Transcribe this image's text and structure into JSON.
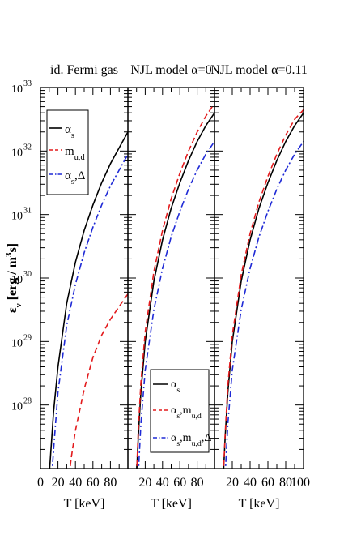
{
  "chart_data": [
    {
      "type": "line",
      "title": "id. Fermi gas",
      "xlabel": "T  [keV]",
      "ylabel": "ε_ν [erg / m³s]",
      "ylabel_main": "ε",
      "ylabel_sub": "ν",
      "ylabel_rest": " [erg / m",
      "ylabel_sup": "3",
      "ylabel_end": "s]",
      "xlim": [
        0,
        100
      ],
      "ylim_log10": [
        27,
        33
      ],
      "log_y": true,
      "xticks": [
        "0",
        "20",
        "40",
        "60",
        "80"
      ],
      "yticks": [
        {
          "base": "10",
          "exp": "28"
        },
        {
          "base": "10",
          "exp": "29"
        },
        {
          "base": "10",
          "exp": "30"
        },
        {
          "base": "10",
          "exp": "31"
        },
        {
          "base": "10",
          "exp": "32"
        },
        {
          "base": "10",
          "exp": "33"
        }
      ],
      "legend_position": "top-left",
      "series": [
        {
          "name": "α_s",
          "label_main": "α",
          "label_sub": "s",
          "label_rest": "",
          "color": "#000000",
          "dash": "solid",
          "x": [
            10,
            15,
            20,
            30,
            40,
            50,
            60,
            70,
            80,
            90,
            100
          ],
          "y_log10": [
            26.9,
            27.9,
            28.6,
            29.6,
            30.25,
            30.75,
            31.15,
            31.5,
            31.8,
            32.05,
            32.3
          ]
        },
        {
          "name": "m_u,d",
          "label_main": "m",
          "label_sub": "u,d",
          "label_rest": "",
          "color": "#e31a1c",
          "dash": "dashed",
          "x": [
            33,
            35,
            40,
            50,
            60,
            70,
            80,
            90,
            100
          ],
          "y_log10": [
            26.9,
            27.15,
            27.6,
            28.25,
            28.75,
            29.1,
            29.35,
            29.55,
            29.75
          ]
        },
        {
          "name": "α_s,Δ",
          "label_main": "α",
          "label_sub": "s",
          "label_rest": ",Δ",
          "color": "#1f2ad6",
          "dash": "dashdot",
          "x": [
            13,
            15,
            20,
            30,
            40,
            50,
            60,
            70,
            80,
            90,
            100
          ],
          "y_log10": [
            26.9,
            27.3,
            28.2,
            29.25,
            29.9,
            30.4,
            30.8,
            31.15,
            31.45,
            31.7,
            31.95
          ]
        }
      ]
    },
    {
      "type": "line",
      "title": "NJL model α=0",
      "xlabel": "T  [keV]",
      "xlim": [
        0,
        100
      ],
      "ylim_log10": [
        27,
        33
      ],
      "log_y": true,
      "xticks": [
        "20",
        "40",
        "60",
        "80"
      ],
      "legend_position": "bottom-right",
      "series": [
        {
          "name": "α_s",
          "label_main": "α",
          "label_sub": "s",
          "label_rest": "",
          "color": "#000000",
          "dash": "solid",
          "x": [
            10,
            12,
            15,
            20,
            30,
            40,
            50,
            60,
            70,
            80,
            90,
            100
          ],
          "y_log10": [
            26.9,
            27.5,
            28.2,
            29.0,
            29.95,
            30.6,
            31.1,
            31.5,
            31.85,
            32.15,
            32.4,
            32.6
          ]
        },
        {
          "name": "α_s,m_u,d",
          "label_main": "α",
          "label_sub": "s",
          "label_rest": ",m",
          "label_sub2": "u,d",
          "color": "#e31a1c",
          "dash": "dashed",
          "x": [
            10,
            12,
            15,
            20,
            30,
            40,
            50,
            60,
            70,
            80,
            90,
            100
          ],
          "y_log10": [
            26.9,
            27.6,
            28.35,
            29.15,
            30.1,
            30.75,
            31.25,
            31.65,
            32.0,
            32.3,
            32.55,
            32.75
          ]
        },
        {
          "name": "α_s,m_u,d,Δ",
          "label_main": "α",
          "label_sub": "s",
          "label_rest": ",m",
          "label_sub2": "u,d",
          "label_tail": ",Δ",
          "color": "#1f2ad6",
          "dash": "dashdot",
          "x": [
            12,
            15,
            20,
            30,
            40,
            50,
            60,
            70,
            80,
            90,
            100
          ],
          "y_log10": [
            26.9,
            27.7,
            28.55,
            29.5,
            30.15,
            30.65,
            31.05,
            31.4,
            31.7,
            31.95,
            32.15
          ]
        }
      ]
    },
    {
      "type": "line",
      "title": "NJL model α=0.11",
      "xlabel": "T  [keV]",
      "xlim": [
        0,
        100
      ],
      "ylim_log10": [
        27,
        33
      ],
      "log_y": true,
      "xticks": [
        "20",
        "40",
        "60",
        "80",
        "100"
      ],
      "series": [
        {
          "name": "α_s",
          "color": "#000000",
          "dash": "solid",
          "x": [
            10,
            12,
            15,
            20,
            30,
            40,
            50,
            60,
            70,
            80,
            90,
            100
          ],
          "y_log10": [
            26.9,
            27.5,
            28.2,
            29.0,
            29.95,
            30.6,
            31.1,
            31.5,
            31.85,
            32.15,
            32.4,
            32.6
          ]
        },
        {
          "name": "α_s,m_u,d",
          "color": "#e31a1c",
          "dash": "dashed",
          "x": [
            10,
            12,
            15,
            20,
            30,
            40,
            50,
            60,
            70,
            80,
            90,
            100
          ],
          "y_log10": [
            26.9,
            27.55,
            28.3,
            29.1,
            30.05,
            30.7,
            31.2,
            31.6,
            31.95,
            32.25,
            32.5,
            32.65
          ]
        },
        {
          "name": "α_s,m_u,d,Δ",
          "color": "#1f2ad6",
          "dash": "dashdot",
          "x": [
            12,
            15,
            20,
            30,
            40,
            50,
            60,
            70,
            80,
            90,
            100
          ],
          "y_log10": [
            26.9,
            27.7,
            28.55,
            29.5,
            30.15,
            30.65,
            31.05,
            31.4,
            31.7,
            31.95,
            32.15
          ]
        }
      ]
    }
  ]
}
